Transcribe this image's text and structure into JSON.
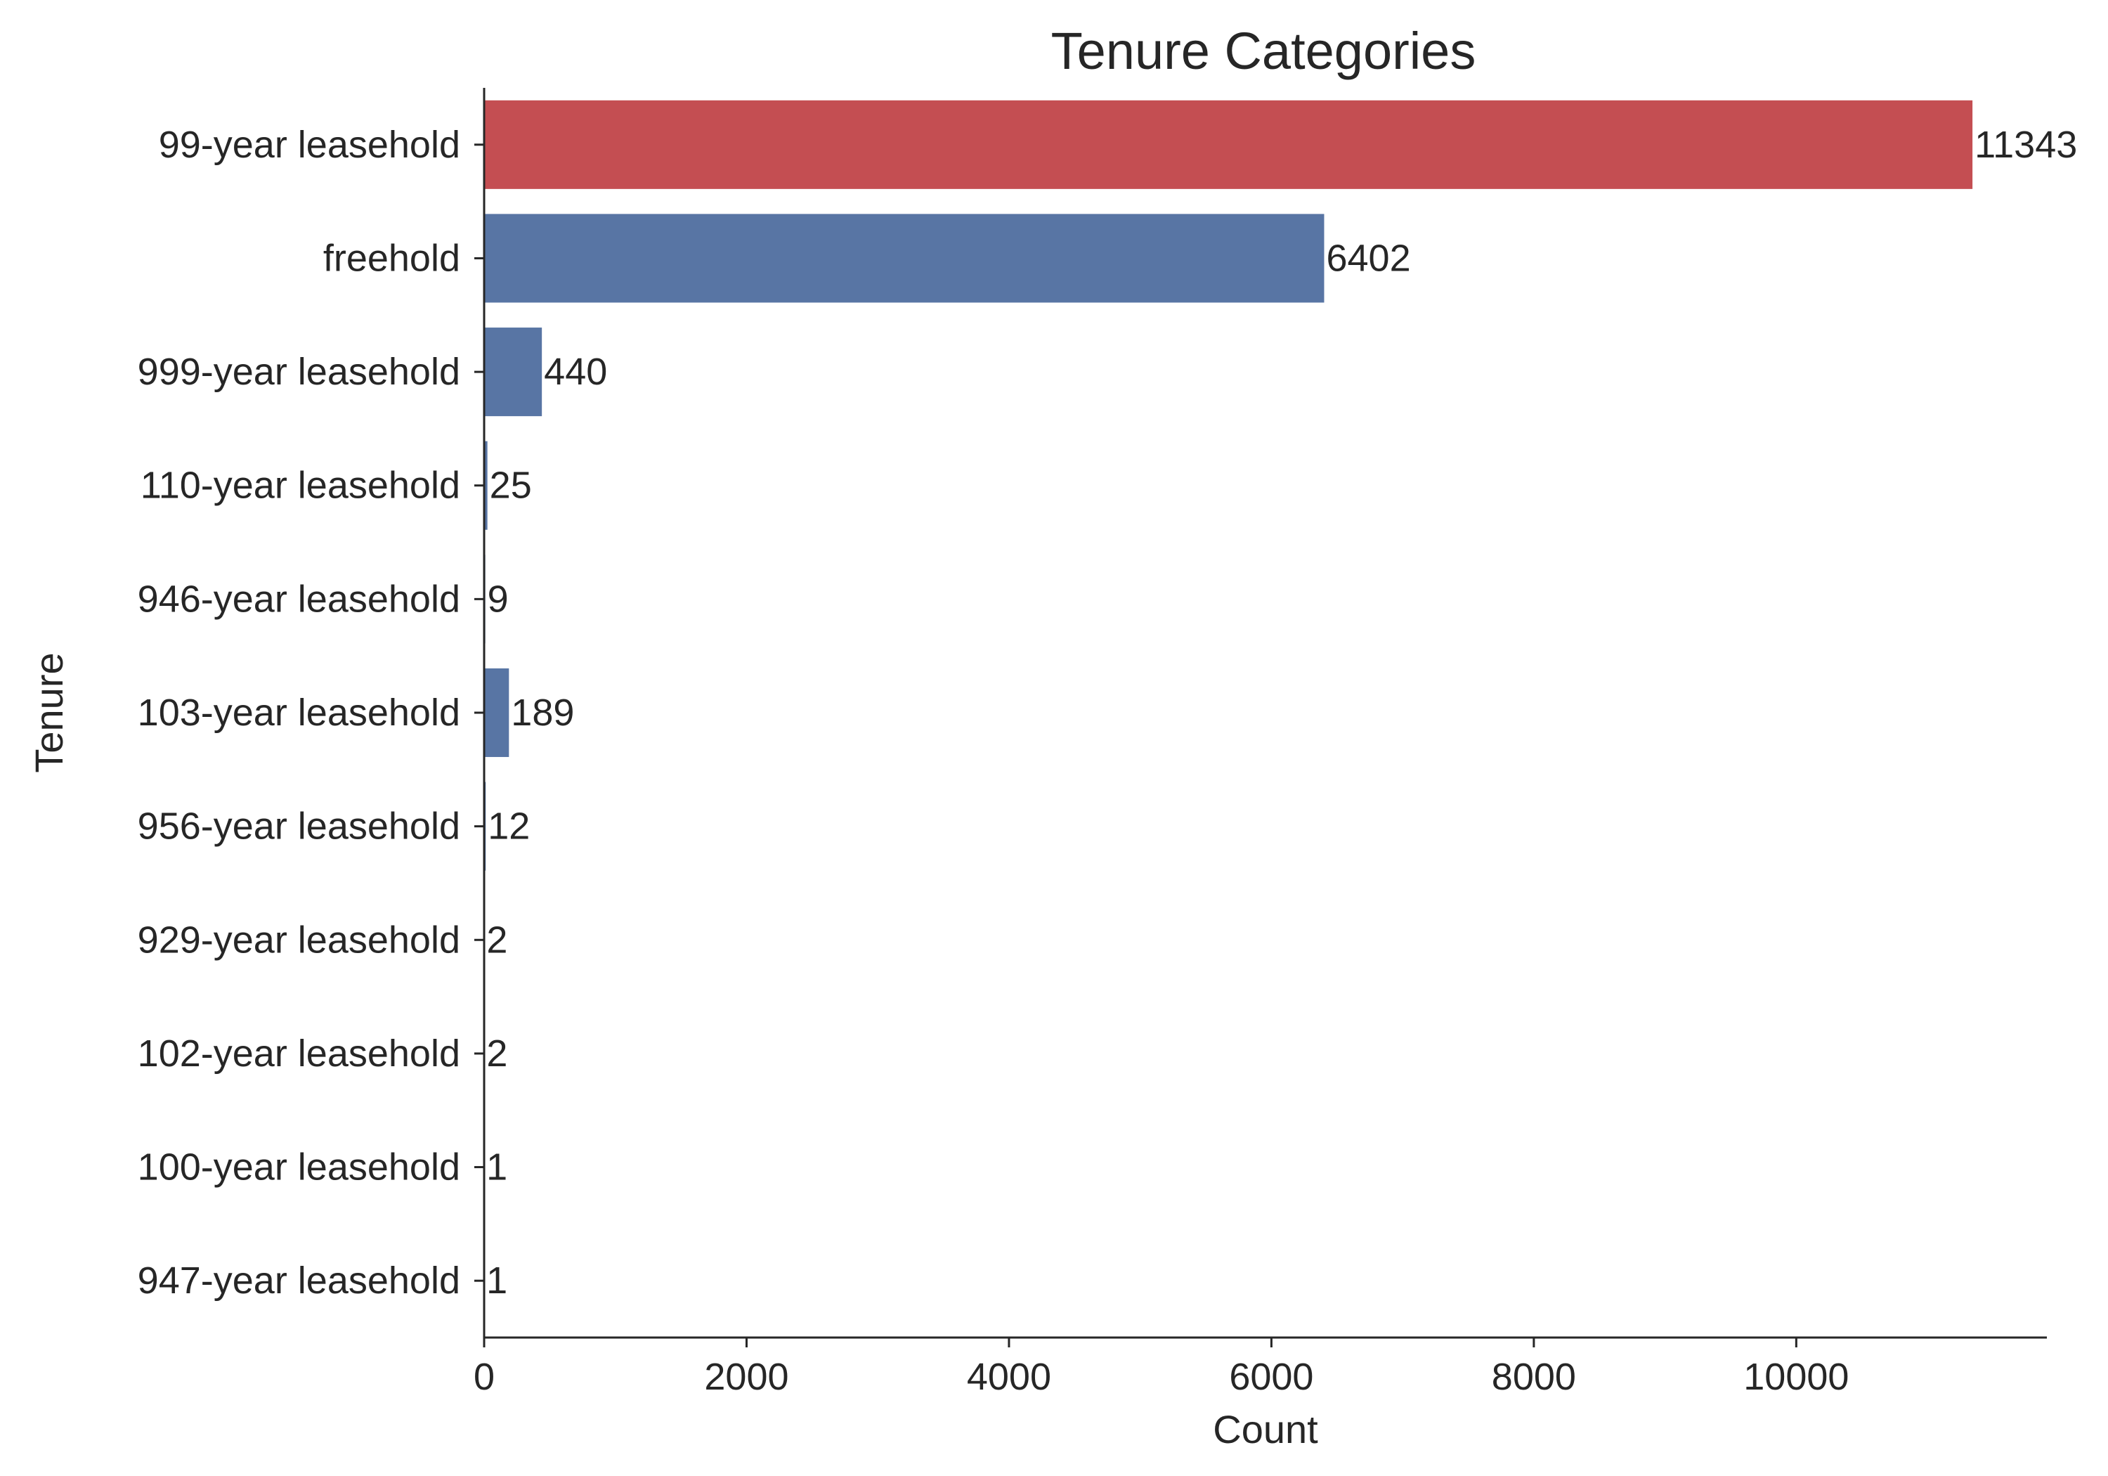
{
  "chart_data": {
    "type": "bar",
    "orientation": "horizontal",
    "title": "Tenure Categories",
    "xlabel": "Count",
    "ylabel": "Tenure",
    "categories": [
      "99-year leasehold",
      "freehold",
      "999-year leasehold",
      "110-year leasehold",
      "946-year leasehold",
      "103-year leasehold",
      "956-year leasehold",
      "929-year leasehold",
      "102-year leasehold",
      "100-year leasehold",
      "947-year leasehold"
    ],
    "values": [
      11343,
      6402,
      440,
      25,
      9,
      189,
      12,
      2,
      2,
      1,
      1
    ],
    "data_labels": [
      "11343",
      "6402",
      "440",
      "25",
      "9",
      "189",
      "12",
      "2",
      "2",
      "1",
      "1"
    ],
    "xlim": [
      0,
      11910
    ],
    "xticks": [
      0,
      2000,
      4000,
      6000,
      8000,
      10000
    ],
    "xtick_labels": [
      "0",
      "2000",
      "4000",
      "6000",
      "8000",
      "10000"
    ],
    "grid": false,
    "colors": {
      "highlight": "#c44e52",
      "default": "#5875a4",
      "text": "#262626",
      "axis": "#262626"
    },
    "highlight_index": 0
  }
}
